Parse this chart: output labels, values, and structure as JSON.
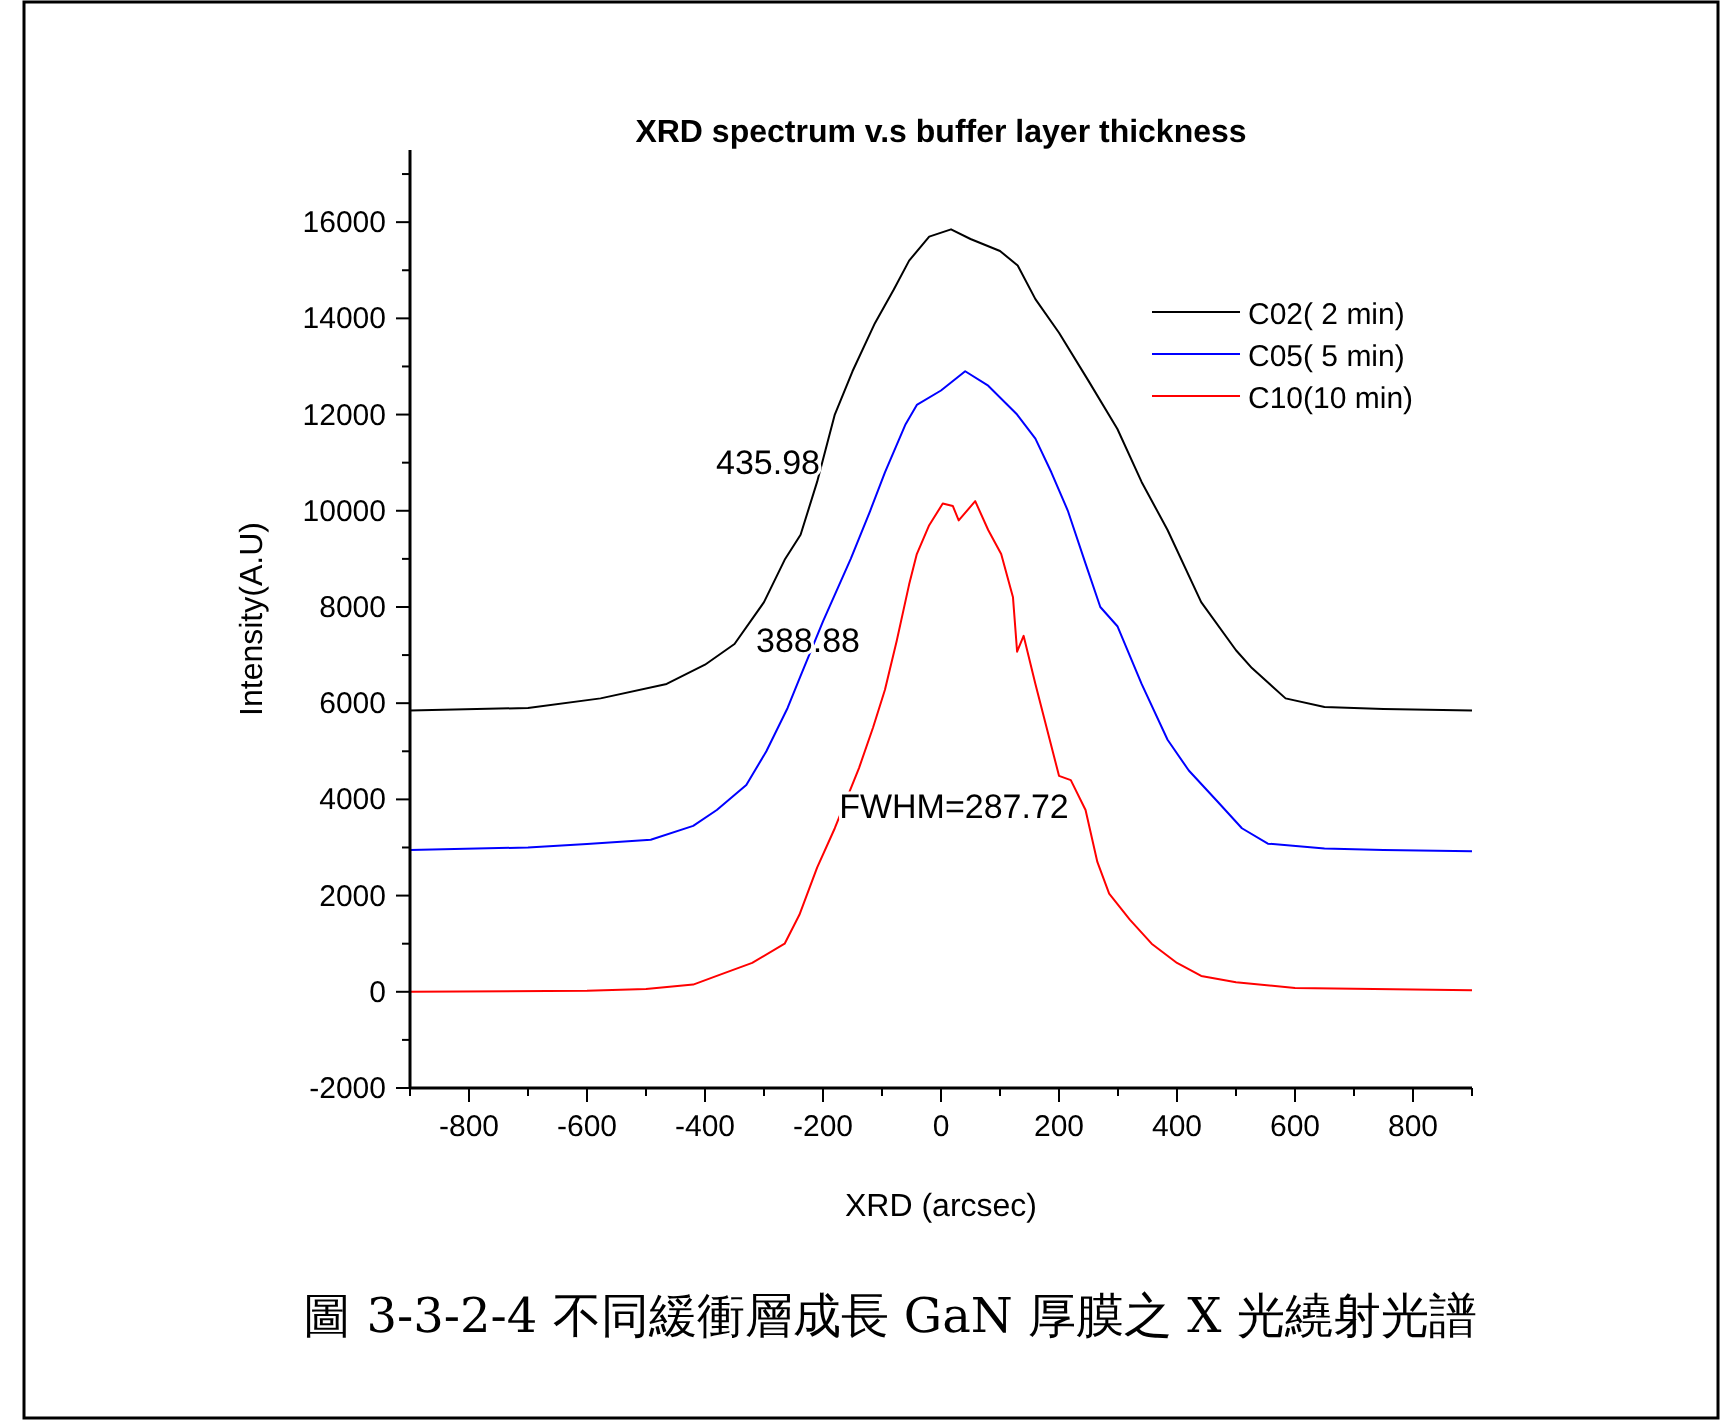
{
  "chart_data": {
    "type": "line",
    "title": "XRD spectrum v.s buffer layer thickness",
    "xlabel": "XRD (arcsec)",
    "ylabel": "Intensity(A.U)",
    "xlim": [
      -900,
      900
    ],
    "ylim": [
      -2000,
      17500
    ],
    "xticks": [
      {
        "value": -900,
        "label": null
      },
      -800,
      {
        "value": -700,
        "label": null
      },
      -600,
      {
        "value": -500,
        "label": null
      },
      -400,
      {
        "value": -300,
        "label": null
      },
      -200,
      {
        "value": -100,
        "label": null
      },
      0,
      {
        "value": 100,
        "label": null
      },
      200,
      {
        "value": 300,
        "label": null
      },
      400,
      {
        "value": 500,
        "label": null
      },
      600,
      {
        "value": 700,
        "label": null
      },
      800,
      {
        "value": 900,
        "label": null
      }
    ],
    "yticks": [
      -2000,
      {
        "value": -1000,
        "label": null
      },
      0,
      {
        "value": 1000,
        "label": null
      },
      2000,
      {
        "value": 3000,
        "label": null
      },
      4000,
      {
        "value": 5000,
        "label": null
      },
      6000,
      {
        "value": 7000,
        "label": null
      },
      8000,
      {
        "value": 9000,
        "label": null
      },
      10000,
      {
        "value": 11000,
        "label": null
      },
      12000,
      {
        "value": 13000,
        "label": null
      },
      14000,
      {
        "value": 15000,
        "label": null
      },
      16000,
      {
        "value": 17000,
        "label": null
      }
    ],
    "grid": false,
    "legend": "top right",
    "marker": "none",
    "line_style": "solid",
    "series": [
      {
        "name": "C02(  2 min)",
        "color": "#000000",
        "x": [
          -900,
          -700,
          -577,
          -465,
          -400,
          -350,
          -300,
          -265,
          -238,
          -210,
          -180,
          -150,
          -112,
          -80,
          -54,
          -20,
          17,
          50,
          100,
          130,
          160,
          200,
          250,
          299,
          340,
          384,
          441,
          500,
          527,
          584,
          650,
          750,
          900
        ],
        "values": [
          5850,
          5900,
          6100,
          6400,
          6800,
          7230,
          8100,
          8980,
          9500,
          10600,
          12000,
          12900,
          13900,
          14600,
          15200,
          15700,
          15850,
          15650,
          15400,
          15100,
          14400,
          13700,
          12700,
          11700,
          10600,
          9600,
          8100,
          7100,
          6730,
          6100,
          5920,
          5880,
          5850
        ]
      },
      {
        "name": "C05(  5 min)",
        "color": "#0000ff",
        "x": [
          -900,
          -700,
          -600,
          -492,
          -420,
          -380,
          -330,
          -296,
          -260,
          -238,
          -200,
          -153,
          -120,
          -95,
          -60,
          -41,
          0,
          41,
          80,
          129,
          160,
          187,
          215,
          245,
          270,
          299,
          340,
          384,
          420,
          469,
          510,
          554,
          650,
          750,
          900
        ],
        "values": [
          2950,
          3000,
          3070,
          3160,
          3450,
          3780,
          4300,
          5000,
          5900,
          6570,
          7700,
          9000,
          10000,
          10800,
          11800,
          12200,
          12500,
          12900,
          12600,
          12000,
          11500,
          10800,
          10000,
          8900,
          8000,
          7600,
          6400,
          5240,
          4600,
          3950,
          3400,
          3080,
          2980,
          2950,
          2920
        ]
      },
      {
        "name": "C10(10 min)",
        "color": "#ff0000",
        "x": [
          -900,
          -600,
          -500,
          -420,
          -380,
          -320,
          -265,
          -240,
          -210,
          -180,
          -139,
          -115,
          -95,
          -75,
          -54,
          -41,
          -20,
          3,
          20,
          30,
          58,
          80,
          102,
          122,
          129,
          140,
          160,
          200,
          220,
          245,
          265,
          285,
          320,
          357,
          400,
          441,
          500,
          600,
          900
        ],
        "values": [
          0,
          20,
          60,
          150,
          330,
          600,
          1000,
          1600,
          2580,
          3400,
          4650,
          5500,
          6280,
          7300,
          8470,
          9100,
          9700,
          10150,
          10100,
          9800,
          10200,
          9600,
          9100,
          8200,
          7070,
          7400,
          6400,
          4490,
          4400,
          3780,
          2700,
          2040,
          1500,
          1000,
          600,
          330,
          200,
          80,
          30
        ]
      }
    ],
    "annotations": [
      "435.98",
      "388.88",
      "FWHM=287.72",
      "圖 3-3-2-4  不同緩衝層成長 GaN 厚膜之 X 光繞射光譜"
    ]
  }
}
